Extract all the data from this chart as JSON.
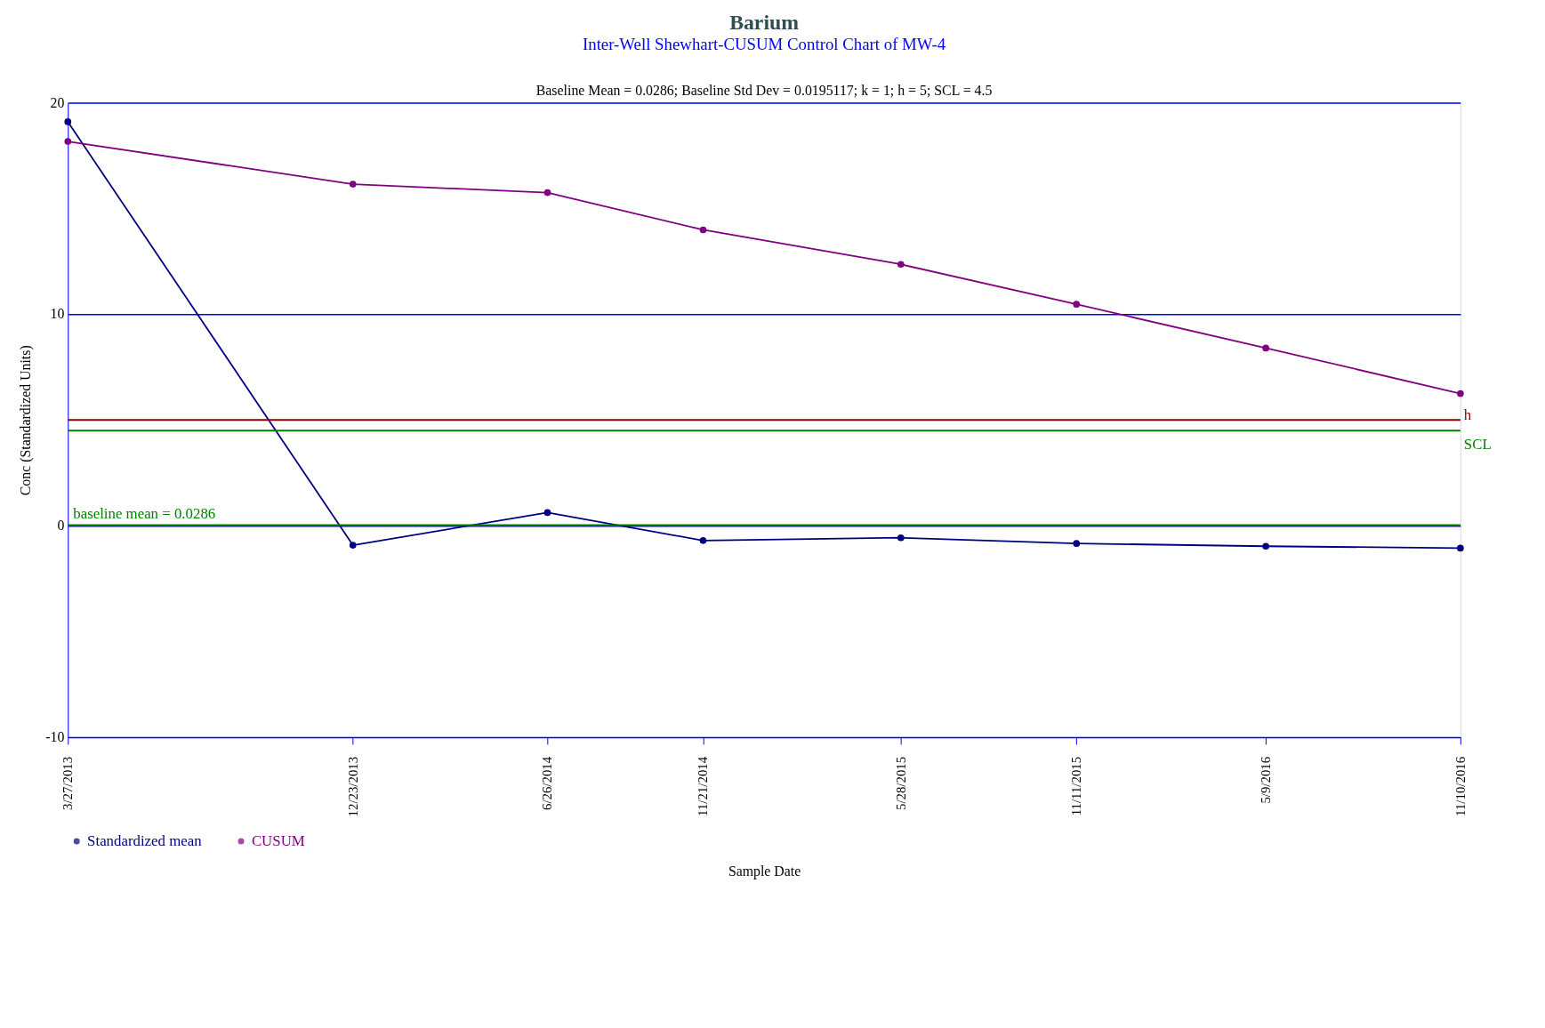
{
  "chart_data": {
    "type": "line",
    "title": "Barium",
    "subtitle": "Inter-Well Shewhart-CUSUM Control Chart of MW-4",
    "annotations": [
      "Baseline Mean = 0.0286; Baseline Std Dev = 0.0195117; k = 1; h = 5; SCL = 4.5"
    ],
    "xlabel": "Sample Date",
    "ylabel": "Conc (Standardized Units)",
    "x": [
      "2013-03-27",
      "2013-12-23",
      "2014-06-26",
      "2014-11-21",
      "2015-05-28",
      "2015-11-11",
      "2016-05-09",
      "2016-11-10"
    ],
    "series": [
      {
        "name": "Standardized mean",
        "color": "#000080",
        "values": [
          19.1,
          -0.92,
          0.62,
          -0.7,
          -0.57,
          -0.84,
          -0.97,
          -1.06
        ]
      },
      {
        "name": "CUSUM",
        "color": "#800080",
        "values": [
          18.17,
          16.15,
          15.75,
          13.99,
          12.36,
          10.47,
          8.4,
          6.25
        ]
      }
    ],
    "xlim": [
      "2013-03-27",
      "2016-11-10"
    ],
    "xticks": [
      {
        "value": "2013-03-27",
        "label": "3/27/2013"
      },
      {
        "value": "2013-12-23",
        "label": "12/23/2013"
      },
      {
        "value": "2014-06-26",
        "label": "6/26/2014"
      },
      {
        "value": "2014-11-21",
        "label": "11/21/2014"
      },
      {
        "value": "2015-05-28",
        "label": "5/28/2015"
      },
      {
        "value": "2015-11-11",
        "label": "11/11/2015"
      },
      {
        "value": "2016-05-09",
        "label": "5/9/2016"
      },
      {
        "value": "2016-11-10",
        "label": "11/10/2016"
      }
    ],
    "ylim": [
      -10,
      20
    ],
    "yticks": [
      -10,
      0,
      10,
      20
    ],
    "ref_lines": [
      {
        "axis": "y",
        "value": 5,
        "label": "h",
        "color": "#8b0000"
      },
      {
        "axis": "y",
        "value": 4.5,
        "label": "SCL",
        "color": "#008000"
      },
      {
        "axis": "y",
        "value": 0.0286,
        "label": "baseline mean = 0.0286",
        "color": "#008000"
      }
    ],
    "grid": "y",
    "legend": "bottom left",
    "marker": "circle",
    "line_style": "solid"
  }
}
